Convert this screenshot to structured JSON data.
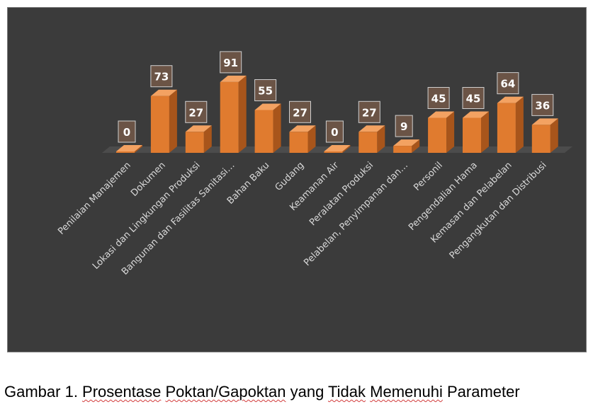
{
  "chart_data": {
    "type": "bar",
    "categories": [
      "Penilaian Manajemen",
      "Dokumen",
      "Lokasi dan Lingkungan Produksi",
      "Bangunan dan Fasilitas Sanitasi…",
      "Bahan Baku",
      "Gudang",
      "Keamanan Air",
      "Peralatan Produksi",
      "Pelabelan, Penyimpanan dan…",
      "Personil",
      "Pengendalian Hama",
      "Kemasan dan Pelabelan",
      "Pengangkutan dan Distribusi"
    ],
    "values": [
      0,
      73,
      27,
      91,
      55,
      27,
      0,
      27,
      9,
      45,
      45,
      64,
      36
    ],
    "title": "",
    "xlabel": "",
    "ylabel": "",
    "ylim": [
      0,
      100
    ],
    "grid": false,
    "legend": "none",
    "data_labels": true,
    "colors": {
      "bar_front": "#e07b2f",
      "bar_side": "#a8551b",
      "bar_top": "#f3a262",
      "floor": "#4c4c4c",
      "label_box": "#6b5446",
      "label_text": "#ffffff",
      "axis_text": "#d9d9d9",
      "background": "#3b3b3b"
    }
  },
  "caption": {
    "prefix": "Gambar 1. ",
    "words": [
      {
        "text": "Prosentase",
        "flagged": true
      },
      {
        "text": " ",
        "flagged": false
      },
      {
        "text": "Poktan/Gapoktan",
        "flagged": true
      },
      {
        "text": " yang ",
        "flagged": false
      },
      {
        "text": "Tidak",
        "flagged": true
      },
      {
        "text": " ",
        "flagged": false
      },
      {
        "text": "Memenuhi",
        "flagged": true
      },
      {
        "text": " Parameter",
        "flagged": false
      }
    ]
  }
}
